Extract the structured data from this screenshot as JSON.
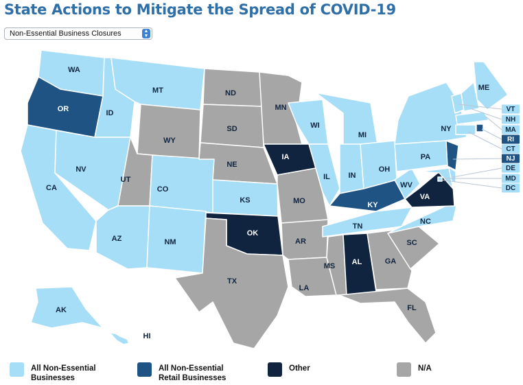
{
  "title": "State Actions to Mitigate the Spread of COVID-19",
  "dropdown": {
    "selected": "Non-Essential Business Closures"
  },
  "colors": {
    "all_non_essential": "#a6def7",
    "retail": "#1e5383",
    "other": "#10243f",
    "na": "#a6a6a6",
    "border": "#ffffff",
    "title": "#2f6fa7"
  },
  "legend": [
    {
      "key": "all_non_essential",
      "label": "All Non-Essential Businesses"
    },
    {
      "key": "retail",
      "label": "All Non-Essential Retail Businesses"
    },
    {
      "key": "other",
      "label": "Other"
    },
    {
      "key": "na",
      "label": "N/A"
    }
  ],
  "states": [
    {
      "code": "WA",
      "category": "all_non_essential"
    },
    {
      "code": "OR",
      "category": "retail"
    },
    {
      "code": "CA",
      "category": "all_non_essential"
    },
    {
      "code": "ID",
      "category": "all_non_essential"
    },
    {
      "code": "NV",
      "category": "all_non_essential"
    },
    {
      "code": "MT",
      "category": "all_non_essential"
    },
    {
      "code": "WY",
      "category": "na"
    },
    {
      "code": "UT",
      "category": "na"
    },
    {
      "code": "AZ",
      "category": "all_non_essential"
    },
    {
      "code": "CO",
      "category": "all_non_essential"
    },
    {
      "code": "NM",
      "category": "all_non_essential"
    },
    {
      "code": "ND",
      "category": "na"
    },
    {
      "code": "SD",
      "category": "na"
    },
    {
      "code": "NE",
      "category": "na"
    },
    {
      "code": "KS",
      "category": "all_non_essential"
    },
    {
      "code": "OK",
      "category": "other"
    },
    {
      "code": "TX",
      "category": "na"
    },
    {
      "code": "MN",
      "category": "na"
    },
    {
      "code": "IA",
      "category": "other"
    },
    {
      "code": "MO",
      "category": "na"
    },
    {
      "code": "AR",
      "category": "na"
    },
    {
      "code": "LA",
      "category": "na"
    },
    {
      "code": "WI",
      "category": "all_non_essential"
    },
    {
      "code": "IL",
      "category": "all_non_essential"
    },
    {
      "code": "MI",
      "category": "all_non_essential"
    },
    {
      "code": "IN",
      "category": "all_non_essential"
    },
    {
      "code": "OH",
      "category": "all_non_essential"
    },
    {
      "code": "KY",
      "category": "retail"
    },
    {
      "code": "TN",
      "category": "all_non_essential"
    },
    {
      "code": "MS",
      "category": "na"
    },
    {
      "code": "AL",
      "category": "other"
    },
    {
      "code": "GA",
      "category": "na"
    },
    {
      "code": "FL",
      "category": "na"
    },
    {
      "code": "SC",
      "category": "na"
    },
    {
      "code": "NC",
      "category": "all_non_essential"
    },
    {
      "code": "VA",
      "category": "other"
    },
    {
      "code": "WV",
      "category": "all_non_essential"
    },
    {
      "code": "PA",
      "category": "all_non_essential"
    },
    {
      "code": "NY",
      "category": "all_non_essential"
    },
    {
      "code": "ME",
      "category": "all_non_essential"
    },
    {
      "code": "AK",
      "category": "all_non_essential"
    },
    {
      "code": "HI",
      "category": "all_non_essential"
    },
    {
      "code": "VT",
      "category": "all_non_essential"
    },
    {
      "code": "NH",
      "category": "all_non_essential"
    },
    {
      "code": "MA",
      "category": "all_non_essential"
    },
    {
      "code": "RI",
      "category": "retail"
    },
    {
      "code": "CT",
      "category": "all_non_essential"
    },
    {
      "code": "NJ",
      "category": "retail"
    },
    {
      "code": "DE",
      "category": "all_non_essential"
    },
    {
      "code": "MD",
      "category": "all_non_essential"
    },
    {
      "code": "DC",
      "category": "all_non_essential"
    }
  ]
}
